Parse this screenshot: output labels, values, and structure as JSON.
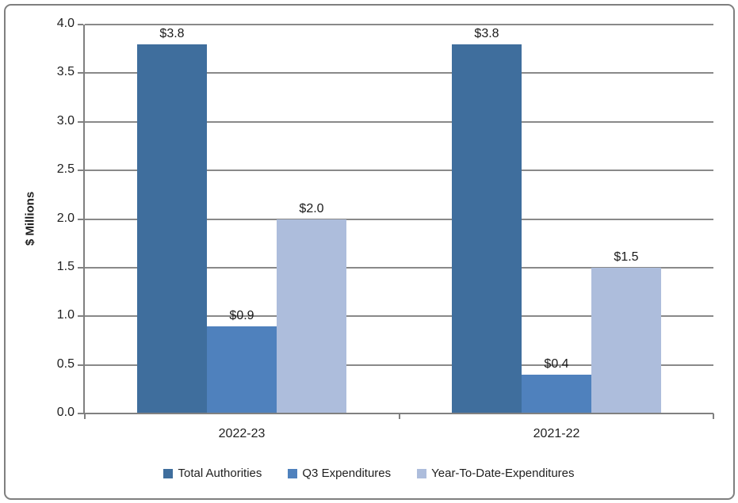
{
  "frame": {
    "border_color": "#7f7f7f",
    "background": "#ffffff"
  },
  "chart_data": {
    "type": "bar",
    "title": "",
    "xlabel": "",
    "ylabel": "$ Millions",
    "categories": [
      "2022-23",
      "2021-22"
    ],
    "series": [
      {
        "name": "Total Authorities",
        "color": "#3F6E9D",
        "values": [
          3.8,
          3.8
        ],
        "data_labels": [
          "$3.8",
          "$3.8"
        ]
      },
      {
        "name": "Q3 Expenditures",
        "color": "#4F81BD",
        "values": [
          0.9,
          0.4
        ],
        "data_labels": [
          "$0.9",
          "$0.4"
        ]
      },
      {
        "name": "Year-To-Date-Expenditures",
        "color": "#ADBDDC",
        "values": [
          2.0,
          1.5
        ],
        "data_labels": [
          "$2.0",
          "$1.5"
        ]
      }
    ],
    "ylim": [
      0.0,
      4.0
    ],
    "ytick_step": 0.5,
    "ytick_labels": [
      "0.0",
      "0.5",
      "1.0",
      "1.5",
      "2.0",
      "2.5",
      "3.0",
      "3.5",
      "4.0"
    ],
    "grid": true,
    "gridline_color": "#898989",
    "axis_color": "#808080",
    "text_color": "#1f1f1f",
    "legend_position": "bottom"
  }
}
